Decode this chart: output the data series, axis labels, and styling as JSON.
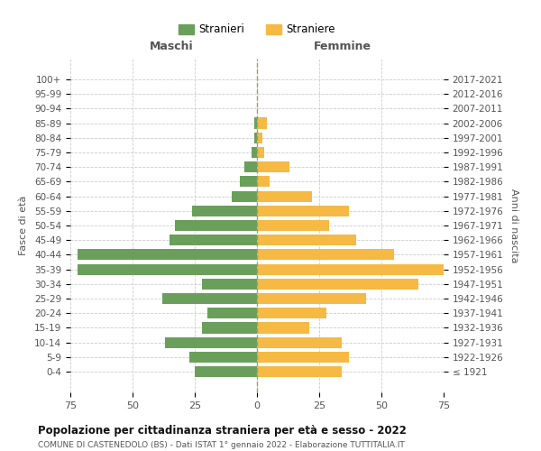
{
  "age_groups": [
    "100+",
    "95-99",
    "90-94",
    "85-89",
    "80-84",
    "75-79",
    "70-74",
    "65-69",
    "60-64",
    "55-59",
    "50-54",
    "45-49",
    "40-44",
    "35-39",
    "30-34",
    "25-29",
    "20-24",
    "15-19",
    "10-14",
    "5-9",
    "0-4"
  ],
  "birth_years": [
    "≤ 1921",
    "1922-1926",
    "1927-1931",
    "1932-1936",
    "1937-1941",
    "1942-1946",
    "1947-1951",
    "1952-1956",
    "1957-1961",
    "1962-1966",
    "1967-1971",
    "1972-1976",
    "1977-1981",
    "1982-1986",
    "1987-1991",
    "1992-1996",
    "1997-2001",
    "2002-2006",
    "2007-2011",
    "2012-2016",
    "2017-2021"
  ],
  "maschi": [
    0,
    0,
    0,
    1,
    1,
    2,
    5,
    7,
    10,
    26,
    33,
    35,
    72,
    72,
    22,
    38,
    20,
    22,
    37,
    27,
    25
  ],
  "femmine": [
    0,
    0,
    0,
    4,
    2,
    3,
    13,
    5,
    22,
    37,
    29,
    40,
    55,
    75,
    65,
    44,
    28,
    21,
    34,
    37,
    34
  ],
  "color_maschi": "#6a9f5b",
  "color_femmine": "#f5b944",
  "background_color": "#ffffff",
  "grid_color": "#cccccc",
  "title": "Popolazione per cittadinanza straniera per età e sesso - 2022",
  "subtitle": "COMUNE DI CASTENEDOLO (BS) - Dati ISTAT 1° gennaio 2022 - Elaborazione TUTTITALIA.IT",
  "ylabel_left": "Fasce di età",
  "ylabel_right": "Anni di nascita",
  "xlabel_left": "Maschi",
  "xlabel_top_right": "Femmine",
  "legend_stranieri": "Stranieri",
  "legend_straniere": "Straniere",
  "xlim": 75
}
